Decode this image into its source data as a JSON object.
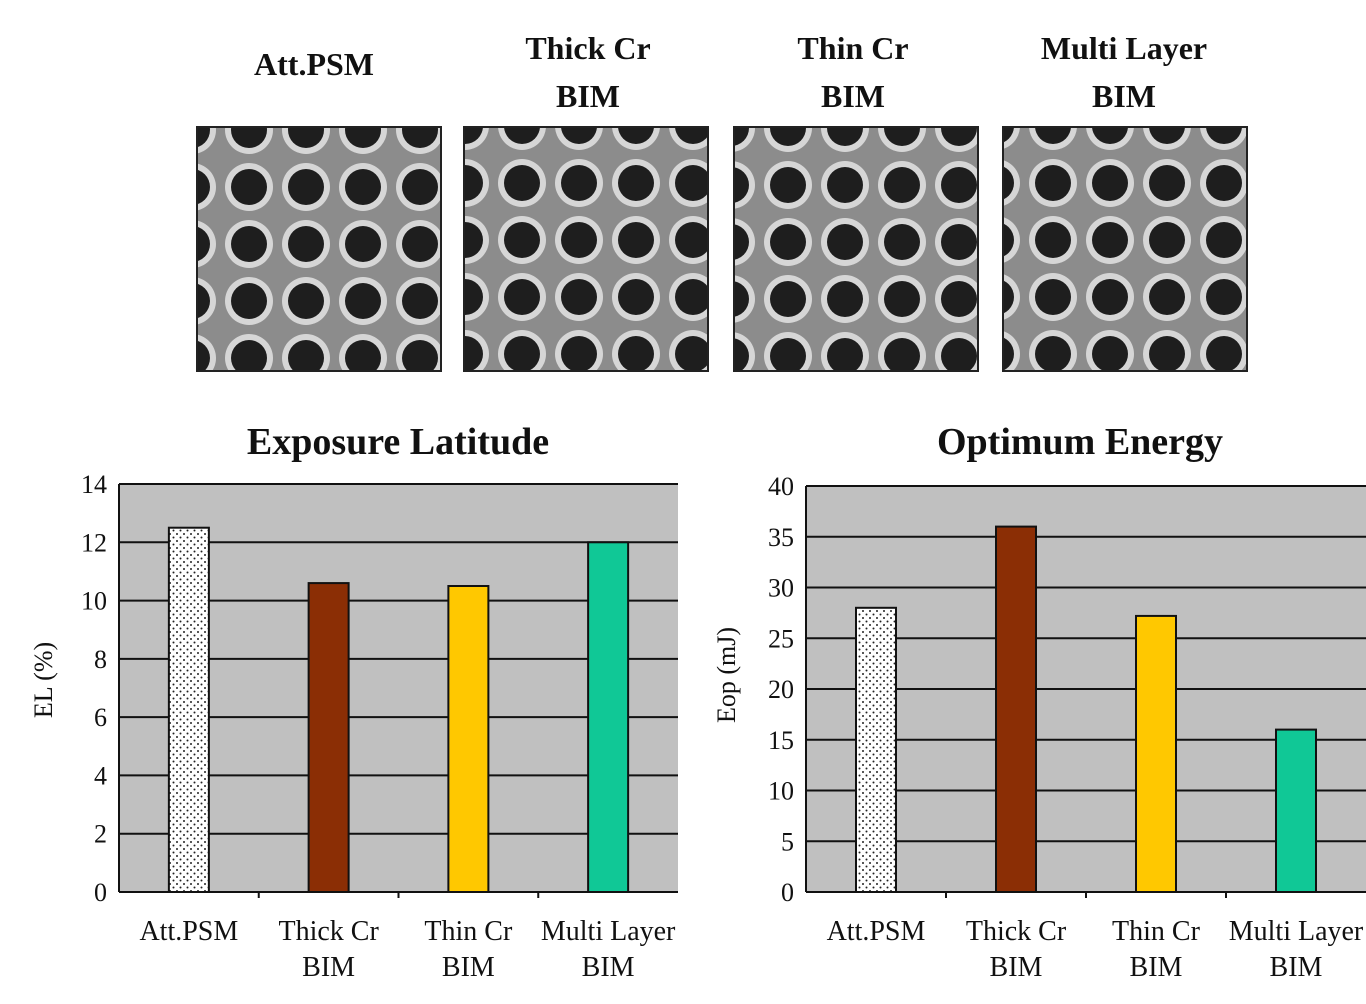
{
  "sem_panels": [
    {
      "label_lines": [
        "Att.PSM"
      ]
    },
    {
      "label_lines": [
        "Thick Cr",
        "BIM"
      ]
    },
    {
      "label_lines": [
        "Thin Cr",
        "BIM"
      ]
    },
    {
      "label_lines": [
        "Multi Layer",
        "BIM"
      ]
    }
  ],
  "chart_data": [
    {
      "type": "bar",
      "title": "Exposure Latitude",
      "ylabel": "EL (%)",
      "xlabel": "",
      "ylim": [
        0,
        14
      ],
      "yticks": [
        0,
        2,
        4,
        6,
        8,
        10,
        12,
        14
      ],
      "grid": true,
      "categories": [
        "Att.PSM",
        "Thick Cr BIM",
        "Thin Cr BIM",
        "Multi Layer BIM"
      ],
      "category_lines": [
        [
          "Att.PSM"
        ],
        [
          "Thick Cr",
          "BIM"
        ],
        [
          "Thin Cr",
          "BIM"
        ],
        [
          "Multi Layer",
          "BIM"
        ]
      ],
      "values": [
        12.5,
        10.6,
        10.5,
        12.0
      ],
      "bar_colors": [
        "dotted-white",
        "#8b2e05",
        "#ffc800",
        "#10c896"
      ],
      "plot_background": "#c0c0c0"
    },
    {
      "type": "bar",
      "title": "Optimum Energy",
      "ylabel": "Eop (mJ)",
      "xlabel": "",
      "ylim": [
        0,
        40
      ],
      "yticks": [
        0,
        5,
        10,
        15,
        20,
        25,
        30,
        35,
        40
      ],
      "grid": true,
      "categories": [
        "Att.PSM",
        "Thick Cr BIM",
        "Thin Cr BIM",
        "Multi Layer BIM"
      ],
      "category_lines": [
        [
          "Att.PSM"
        ],
        [
          "Thick Cr",
          "BIM"
        ],
        [
          "Thin Cr",
          "BIM"
        ],
        [
          "Multi Layer",
          "BIM"
        ]
      ],
      "values": [
        28,
        36,
        27.2,
        16
      ],
      "bar_colors": [
        "dotted-white",
        "#8b2e05",
        "#ffc800",
        "#10c896"
      ],
      "plot_background": "#c0c0c0"
    }
  ]
}
